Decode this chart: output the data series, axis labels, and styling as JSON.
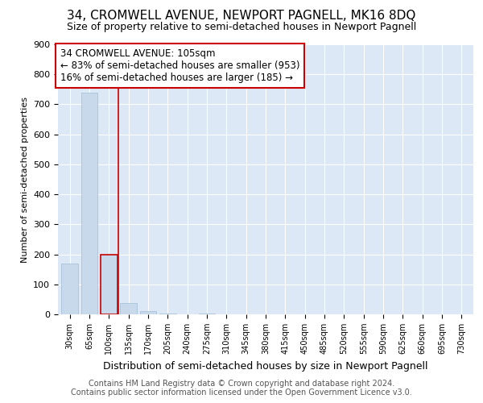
{
  "title": "34, CROMWELL AVENUE, NEWPORT PAGNELL, MK16 8DQ",
  "subtitle": "Size of property relative to semi-detached houses in Newport Pagnell",
  "xlabel": "Distribution of semi-detached houses by size in Newport Pagnell",
  "ylabel": "Number of semi-detached properties",
  "footer_line1": "Contains HM Land Registry data © Crown copyright and database right 2024.",
  "footer_line2": "Contains public sector information licensed under the Open Government Licence v3.0.",
  "annotation_line1": "34 CROMWELL AVENUE: 105sqm",
  "annotation_line2": "← 83% of semi-detached houses are smaller (953)",
  "annotation_line3": "16% of semi-detached houses are larger (185) →",
  "bar_color_normal": "#c8d9eb",
  "bar_edge_color": "#a0bdd4",
  "highlight_bar_edge_color": "#cc0000",
  "annotation_box_edge_color": "#cc0000",
  "background_color": "#ffffff",
  "plot_background_color": "#dce8f5",
  "grid_color": "#ffffff",
  "ylim": [
    0,
    900
  ],
  "yticks": [
    0,
    100,
    200,
    300,
    400,
    500,
    600,
    700,
    800,
    900
  ],
  "categories": [
    "30sqm",
    "65sqm",
    "100sqm",
    "135sqm",
    "170sqm",
    "205sqm",
    "240sqm",
    "275sqm",
    "310sqm",
    "345sqm",
    "380sqm",
    "415sqm",
    "450sqm",
    "485sqm",
    "520sqm",
    "555sqm",
    "590sqm",
    "625sqm",
    "660sqm",
    "695sqm",
    "730sqm"
  ],
  "values": [
    170,
    740,
    200,
    38,
    10,
    3,
    1,
    4,
    0,
    0,
    0,
    0,
    0,
    0,
    0,
    0,
    0,
    0,
    0,
    0,
    0
  ],
  "highlight_index": 2,
  "vline_x": 2.5,
  "title_fontsize": 11,
  "subtitle_fontsize": 9,
  "annotation_fontsize": 8.5,
  "footer_fontsize": 7
}
